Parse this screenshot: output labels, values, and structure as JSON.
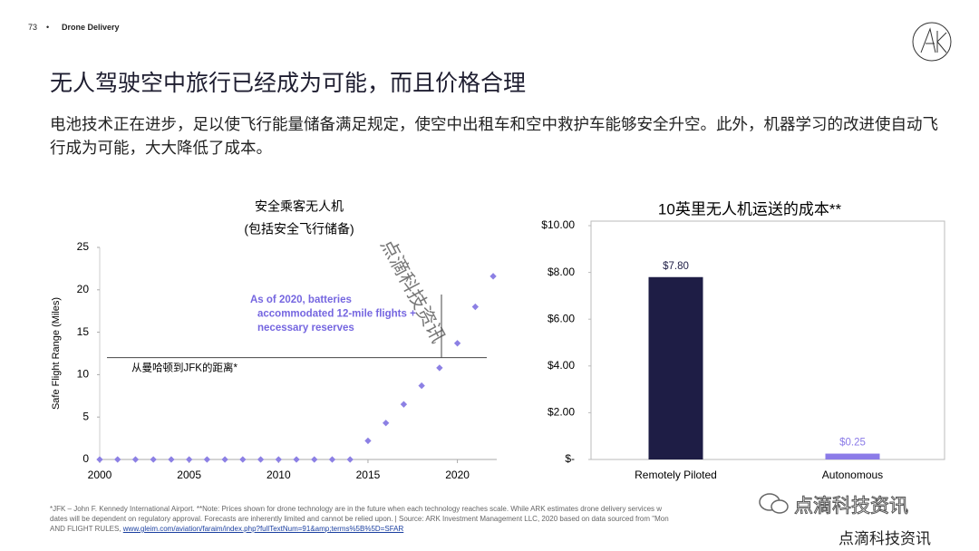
{
  "header": {
    "page_number": "73",
    "separator": "•",
    "section": "Drone Delivery"
  },
  "title": "无人驾驶空中旅行已经成为可能，而且价格合理",
  "subtitle": "电池技术正在进步，足以使飞行能量储备满足规定，使空中出租车和空中救护车能够安全升空。此外，机器学习的改进使自动飞行成为可能，大大降低了成本。",
  "watermark": "点滴科技资讯",
  "footnote": {
    "lines": [
      "*JFK – John F. Kennedy International Airport. **Note: Prices shown for drone technology are in the future when each technology reaches scale. While ARK estimates drone delivery services w",
      "dates will be dependent on regulatory approval. Forecasts are inherently limited and cannot be relied upon. | Source: ARK Investment Management LLC, 2020 based on data sourced from \"Mon",
      "AND FLIGHT RULES,"
    ],
    "link": "www.gleim.com/aviation/faraim/index.php?fullTextNum=91&amp;terms%5B%5D=SFAR"
  },
  "chart_data": [
    {
      "type": "scatter",
      "title": "安全乘客无人机",
      "subtitle": "(包括安全飞行储备)",
      "y_label": "Safe Flight Range (Miles)",
      "color": "#8c80e4",
      "x": [
        2000,
        2001,
        2002,
        2003,
        2004,
        2005,
        2006,
        2007,
        2008,
        2009,
        2010,
        2011,
        2012,
        2013,
        2014,
        2015,
        2016,
        2017,
        2018,
        2019,
        2020,
        2021,
        2022
      ],
      "values": [
        0,
        0,
        0,
        0,
        0,
        0,
        0,
        0,
        0,
        0,
        0,
        0,
        0,
        0,
        0,
        2.2,
        4.3,
        6.5,
        8.7,
        10.8,
        13.7,
        18,
        21.6
      ],
      "xlim": [
        2000,
        2022.2
      ],
      "xticks": [
        2000,
        2005,
        2010,
        2015,
        2020
      ],
      "ylim": [
        0,
        25
      ],
      "yticks": [
        0,
        5,
        10,
        15,
        20,
        25
      ],
      "reference_line": {
        "value": 12,
        "label": "从曼哈顿到JFK的距离*"
      },
      "annotation_lines": [
        "As of 2020, batteries",
        "accommodated 12-mile flights +",
        "necessary reserves"
      ],
      "annotation_color": "#7566e0"
    },
    {
      "type": "bar",
      "title": "10英里无人机运送的成本**",
      "categories": [
        "Remotely Piloted",
        "Autonomous"
      ],
      "values": [
        7.8,
        0.25
      ],
      "value_labels": [
        "$7.80",
        "$0.25"
      ],
      "colors": [
        "#1e1d45",
        "#8b7be8"
      ],
      "ylim": [
        0,
        10
      ],
      "yticks": [
        {
          "value": 0,
          "label": "$-"
        },
        {
          "value": 2,
          "label": "$2.00"
        },
        {
          "value": 4,
          "label": "$4.00"
        },
        {
          "value": 6,
          "label": "$6.00"
        },
        {
          "value": 8,
          "label": "$8.00"
        },
        {
          "value": 10,
          "label": "$10.00"
        }
      ]
    }
  ]
}
